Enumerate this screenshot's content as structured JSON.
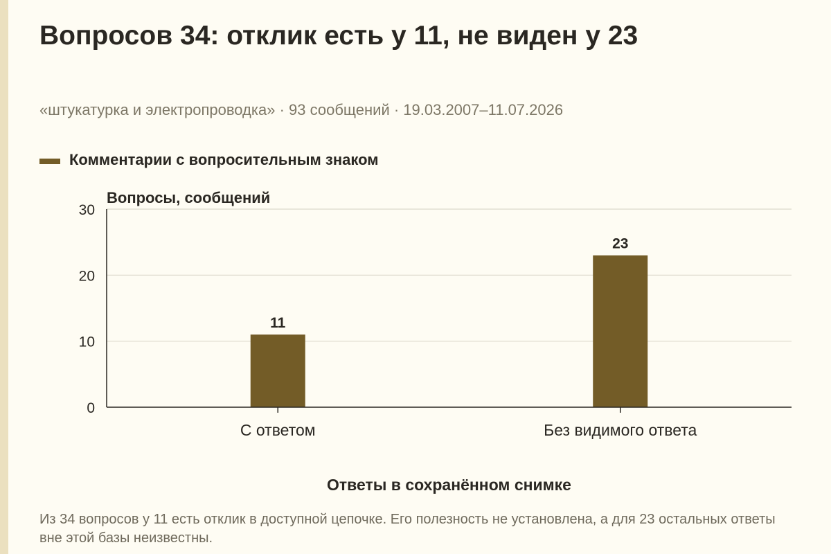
{
  "title": "Вопросов 34: отклик есть у 11, не виден у 23",
  "subtitle": "«штукатурка и электропроводка» · 93 сообщений · 19.03.2007–11.07.2026",
  "note": "Из 34 вопросов у 11 есть отклик в доступной цепочке. Его полезность не установлена, а для 23 остальных ответы вне этой базы неизвестны.",
  "colors": {
    "bar": "#735c27",
    "background": "#fefcf3",
    "grid": "#dcd8cc",
    "axis": "#2a2722"
  },
  "chart_data": {
    "type": "bar",
    "categories": [
      "С ответом",
      "Без видимого ответа"
    ],
    "series": [
      {
        "name": "Комментарии с вопросительным знаком",
        "values": [
          11,
          23
        ]
      }
    ],
    "ylabel": "Вопросы, сообщений",
    "xlabel": "Ответы в сохранённом снимке",
    "ylim": [
      0,
      30
    ],
    "yticks": [
      0,
      10,
      20,
      30
    ],
    "grid": true,
    "legend": "top-left",
    "data_labels": true
  }
}
